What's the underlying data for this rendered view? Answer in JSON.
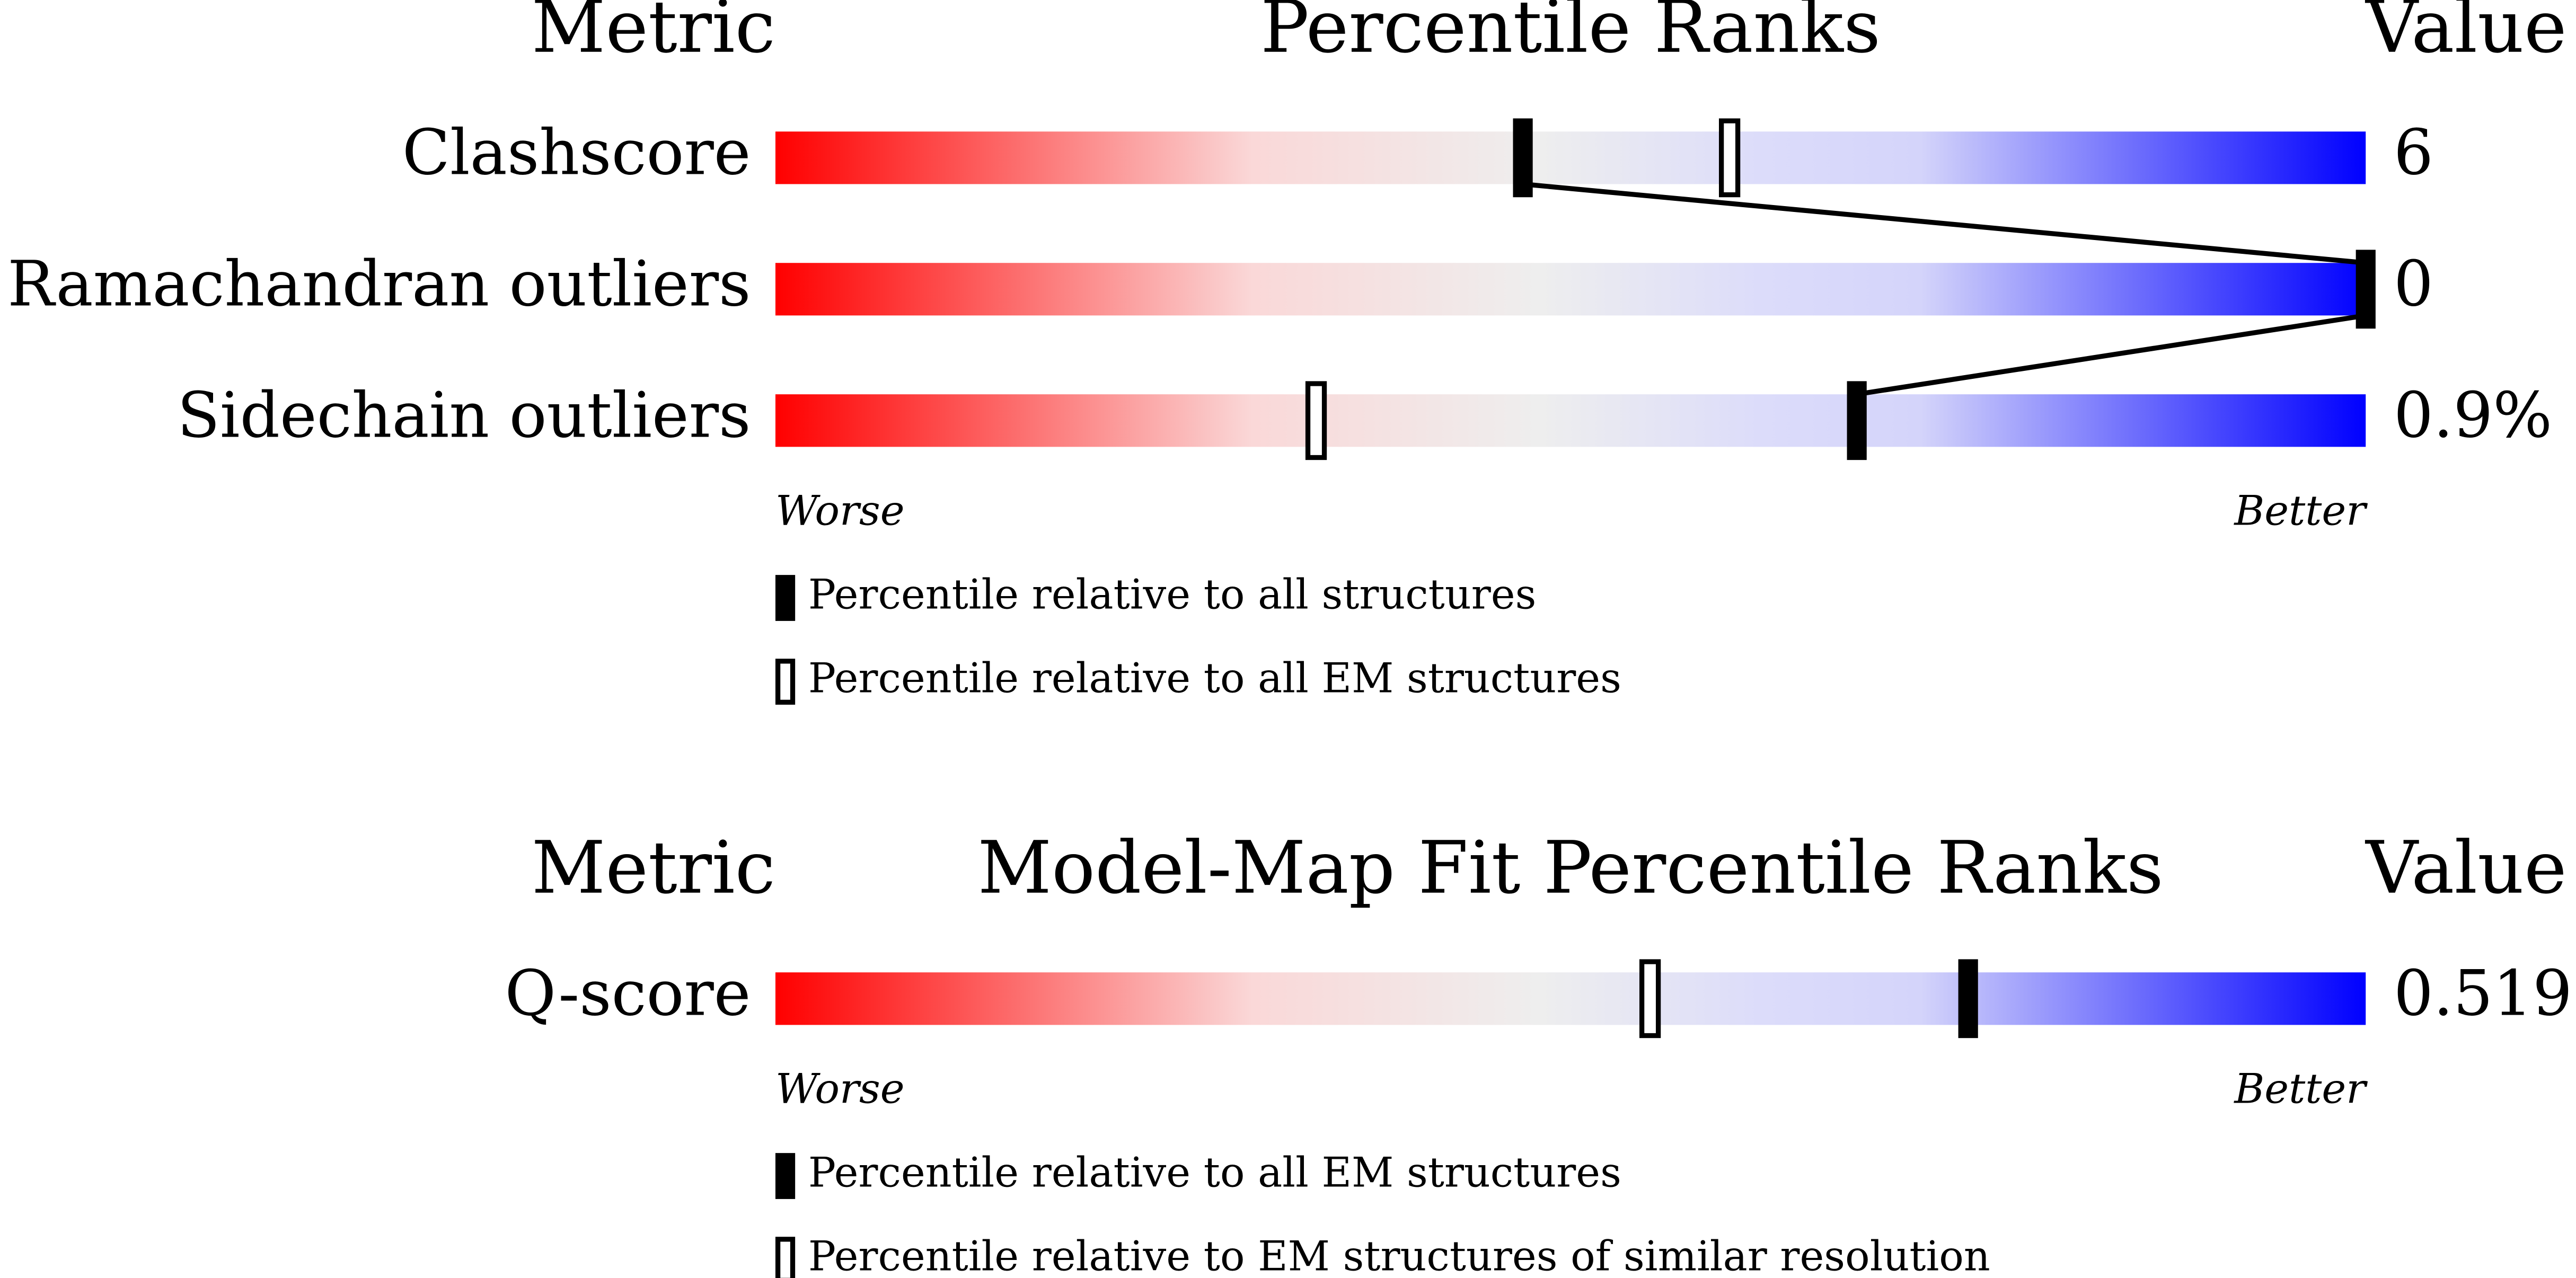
{
  "panels": [
    {
      "header": {
        "metric": "Metric",
        "title": "Percentile Ranks",
        "value": "Value"
      },
      "scale": [
        0,
        100
      ],
      "connect_filled": true,
      "rows": [
        {
          "label": "Clashscore",
          "value": "6",
          "filled_percentile": 47,
          "open_percentile": 60
        },
        {
          "label": "Ramachandran outliers",
          "value": "0",
          "filled_percentile": 100,
          "open_percentile": null
        },
        {
          "label": "Sidechain outliers",
          "value": "0.9%",
          "filled_percentile": 68,
          "open_percentile": 34
        }
      ],
      "worse": "Worse",
      "better": "Better",
      "legend": {
        "filled": "Percentile relative to all structures",
        "open": "Percentile relative to all EM structures"
      }
    },
    {
      "header": {
        "metric": "Metric",
        "title": "Model-Map Fit Percentile Ranks",
        "value": "Value"
      },
      "scale": [
        0,
        100
      ],
      "connect_filled": false,
      "rows": [
        {
          "label": "Q-score",
          "value": "0.519",
          "filled_percentile": 75,
          "open_percentile": 55
        }
      ],
      "worse": "Worse",
      "better": "Better",
      "legend": {
        "filled": "Percentile relative to all EM structures",
        "open": "Percentile relative to EM structures of similar resolution"
      }
    }
  ]
}
